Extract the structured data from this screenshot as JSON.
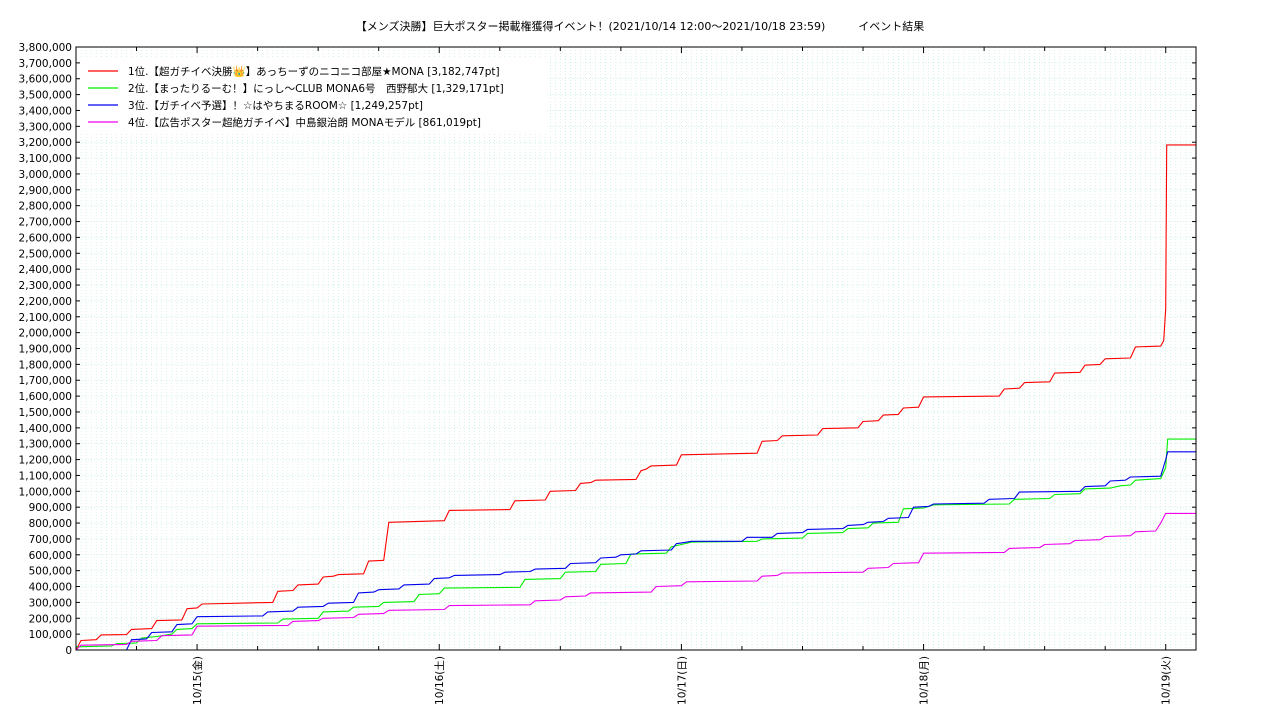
{
  "chart_data": {
    "type": "line",
    "title": "【メンズ決勝】巨大ポスター掲載権獲得イベント！(2021/10/14 12:00〜2021/10/18 23:59)　　　イベント結果",
    "xlabel": "",
    "ylabel": "",
    "ylim": [
      0,
      3800000
    ],
    "y_tick_step": 100000,
    "x_unit": "hours since 2021/10/14 12:00",
    "xlim": [
      0,
      111
    ],
    "x_ticks": [
      {
        "x": 12,
        "label": "10/15(金)"
      },
      {
        "x": 36,
        "label": "10/16(土)"
      },
      {
        "x": 60,
        "label": "10/17(日)"
      },
      {
        "x": 84,
        "label": "10/18(月)"
      },
      {
        "x": 108,
        "label": "10/19(火)"
      }
    ],
    "grid": true,
    "legend_position": "top-left",
    "series": [
      {
        "name": "1位.【超ガチイベ決勝👑】あっちーずのニコニコ部屋★MONA [3,182,747pt]",
        "color": "#ff0000",
        "points": [
          [
            0,
            0
          ],
          [
            0.5,
            60000
          ],
          [
            2,
            65000
          ],
          [
            2.5,
            95000
          ],
          [
            5,
            97000
          ],
          [
            5.5,
            130000
          ],
          [
            7.5,
            135000
          ],
          [
            8,
            185000
          ],
          [
            10.5,
            190000
          ],
          [
            11,
            260000
          ],
          [
            12,
            265000
          ],
          [
            12.5,
            290000
          ],
          [
            19.5,
            300000
          ],
          [
            20,
            370000
          ],
          [
            21.5,
            375000
          ],
          [
            22,
            410000
          ],
          [
            24,
            415000
          ],
          [
            24.5,
            460000
          ],
          [
            25.5,
            465000
          ],
          [
            26,
            475000
          ],
          [
            28.5,
            480000
          ],
          [
            29,
            560000
          ],
          [
            30.5,
            565000
          ],
          [
            31,
            805000
          ],
          [
            36.5,
            815000
          ],
          [
            37,
            880000
          ],
          [
            43,
            885000
          ],
          [
            43.5,
            940000
          ],
          [
            46.5,
            945000
          ],
          [
            47,
            1000000
          ],
          [
            49.5,
            1005000
          ],
          [
            50,
            1050000
          ],
          [
            51,
            1055000
          ],
          [
            51.5,
            1070000
          ],
          [
            55.5,
            1075000
          ],
          [
            56,
            1130000
          ],
          [
            56.5,
            1140000
          ],
          [
            57,
            1160000
          ],
          [
            59.5,
            1165000
          ],
          [
            60,
            1230000
          ],
          [
            67.5,
            1240000
          ],
          [
            68,
            1315000
          ],
          [
            69.5,
            1320000
          ],
          [
            70,
            1350000
          ],
          [
            73.5,
            1355000
          ],
          [
            74,
            1395000
          ],
          [
            77.5,
            1400000
          ],
          [
            78,
            1440000
          ],
          [
            79.5,
            1445000
          ],
          [
            80,
            1480000
          ],
          [
            81.5,
            1485000
          ],
          [
            82,
            1525000
          ],
          [
            83.5,
            1530000
          ],
          [
            84,
            1595000
          ],
          [
            91.5,
            1600000
          ],
          [
            92,
            1645000
          ],
          [
            93.5,
            1650000
          ],
          [
            94,
            1685000
          ],
          [
            96.5,
            1690000
          ],
          [
            97,
            1745000
          ],
          [
            99.5,
            1750000
          ],
          [
            100,
            1795000
          ],
          [
            101.5,
            1800000
          ],
          [
            102,
            1835000
          ],
          [
            104.5,
            1840000
          ],
          [
            105,
            1910000
          ],
          [
            107.5,
            1915000
          ],
          [
            107.8,
            1950000
          ],
          [
            108,
            2150000
          ],
          [
            108.1,
            3182747
          ],
          [
            111,
            3182747
          ]
        ]
      },
      {
        "name": "2位.【まったりるーむ！】にっし〜CLUB MONA6号　西野郁大 [1,329,171pt]",
        "color": "#00ee00",
        "points": [
          [
            0,
            20000
          ],
          [
            3.5,
            25000
          ],
          [
            4,
            40000
          ],
          [
            6,
            45000
          ],
          [
            6.5,
            75000
          ],
          [
            8,
            85000
          ],
          [
            9.5,
            100000
          ],
          [
            10,
            130000
          ],
          [
            11.5,
            135000
          ],
          [
            12,
            165000
          ],
          [
            20,
            170000
          ],
          [
            20.5,
            195000
          ],
          [
            24,
            200000
          ],
          [
            24.5,
            240000
          ],
          [
            27,
            245000
          ],
          [
            27.5,
            270000
          ],
          [
            30,
            275000
          ],
          [
            30.5,
            300000
          ],
          [
            33.5,
            305000
          ],
          [
            34,
            350000
          ],
          [
            36,
            355000
          ],
          [
            36.5,
            390000
          ],
          [
            44,
            395000
          ],
          [
            44.5,
            445000
          ],
          [
            48,
            450000
          ],
          [
            48.5,
            490000
          ],
          [
            51.5,
            495000
          ],
          [
            52,
            540000
          ],
          [
            54.5,
            545000
          ],
          [
            55,
            605000
          ],
          [
            58.5,
            610000
          ],
          [
            59,
            650000
          ],
          [
            61,
            680000
          ],
          [
            67.5,
            685000
          ],
          [
            68,
            700000
          ],
          [
            72,
            705000
          ],
          [
            72.5,
            735000
          ],
          [
            76,
            740000
          ],
          [
            76.5,
            765000
          ],
          [
            78.5,
            770000
          ],
          [
            79,
            800000
          ],
          [
            81.5,
            805000
          ],
          [
            82,
            890000
          ],
          [
            84,
            895000
          ],
          [
            85,
            915000
          ],
          [
            92.5,
            920000
          ],
          [
            93,
            950000
          ],
          [
            96.5,
            955000
          ],
          [
            97,
            980000
          ],
          [
            99.5,
            985000
          ],
          [
            100,
            1015000
          ],
          [
            102.5,
            1020000
          ],
          [
            103.5,
            1035000
          ],
          [
            104.5,
            1040000
          ],
          [
            105,
            1070000
          ],
          [
            107.5,
            1080000
          ],
          [
            108,
            1150000
          ],
          [
            108.2,
            1329171
          ],
          [
            111,
            1329171
          ]
        ]
      },
      {
        "name": "3位.【ガチイベ予選】！☆はやちまるROOM☆ [1,249,257pt]",
        "color": "#0000ee",
        "points": [
          [
            0,
            0
          ],
          [
            5,
            0
          ],
          [
            5.5,
            65000
          ],
          [
            7,
            70000
          ],
          [
            7.5,
            110000
          ],
          [
            9.5,
            115000
          ],
          [
            10,
            160000
          ],
          [
            11.5,
            165000
          ],
          [
            12,
            210000
          ],
          [
            18.5,
            215000
          ],
          [
            19,
            240000
          ],
          [
            21.5,
            245000
          ],
          [
            22,
            270000
          ],
          [
            24.5,
            275000
          ],
          [
            25,
            295000
          ],
          [
            27.5,
            300000
          ],
          [
            28,
            360000
          ],
          [
            29.5,
            365000
          ],
          [
            30,
            380000
          ],
          [
            32,
            385000
          ],
          [
            32.5,
            410000
          ],
          [
            35,
            415000
          ],
          [
            35.5,
            450000
          ],
          [
            37,
            455000
          ],
          [
            37.5,
            470000
          ],
          [
            42,
            475000
          ],
          [
            42.5,
            490000
          ],
          [
            45,
            495000
          ],
          [
            45.5,
            510000
          ],
          [
            48.5,
            515000
          ],
          [
            49,
            545000
          ],
          [
            51.5,
            550000
          ],
          [
            52,
            580000
          ],
          [
            53.5,
            585000
          ],
          [
            54,
            600000
          ],
          [
            55.5,
            605000
          ],
          [
            56,
            625000
          ],
          [
            59,
            630000
          ],
          [
            59.5,
            670000
          ],
          [
            60,
            675000
          ],
          [
            61,
            685000
          ],
          [
            66,
            685000
          ],
          [
            66.5,
            710000
          ],
          [
            69,
            710000
          ],
          [
            69.5,
            735000
          ],
          [
            72,
            740000
          ],
          [
            72.5,
            760000
          ],
          [
            76,
            765000
          ],
          [
            76.5,
            785000
          ],
          [
            78,
            790000
          ],
          [
            78.5,
            805000
          ],
          [
            80,
            810000
          ],
          [
            80.5,
            830000
          ],
          [
            82.5,
            835000
          ],
          [
            83,
            900000
          ],
          [
            84.5,
            905000
          ],
          [
            85,
            920000
          ],
          [
            90,
            925000
          ],
          [
            90.5,
            950000
          ],
          [
            93,
            955000
          ],
          [
            93.5,
            995000
          ],
          [
            99.5,
            1000000
          ],
          [
            100,
            1030000
          ],
          [
            102,
            1035000
          ],
          [
            102.5,
            1065000
          ],
          [
            104,
            1070000
          ],
          [
            104.5,
            1090000
          ],
          [
            107.5,
            1095000
          ],
          [
            108,
            1200000
          ],
          [
            108.2,
            1249257
          ],
          [
            111,
            1249257
          ]
        ]
      },
      {
        "name": "4位.【広告ポスター超絶ガチイベ】中島銀治朗 MONAモデル [861,019pt]",
        "color": "#ee00ee",
        "points": [
          [
            0,
            0
          ],
          [
            0.5,
            30000
          ],
          [
            5,
            35000
          ],
          [
            5.5,
            55000
          ],
          [
            8,
            60000
          ],
          [
            8.5,
            90000
          ],
          [
            11.5,
            95000
          ],
          [
            12,
            150000
          ],
          [
            21,
            155000
          ],
          [
            21.5,
            180000
          ],
          [
            24,
            185000
          ],
          [
            24.5,
            200000
          ],
          [
            27.5,
            205000
          ],
          [
            28,
            225000
          ],
          [
            30.5,
            230000
          ],
          [
            31,
            250000
          ],
          [
            36.5,
            255000
          ],
          [
            37,
            280000
          ],
          [
            45,
            285000
          ],
          [
            45.5,
            310000
          ],
          [
            48,
            315000
          ],
          [
            48.5,
            335000
          ],
          [
            50.5,
            340000
          ],
          [
            51,
            360000
          ],
          [
            57,
            365000
          ],
          [
            57.5,
            400000
          ],
          [
            60,
            405000
          ],
          [
            60.5,
            430000
          ],
          [
            67.5,
            435000
          ],
          [
            68,
            465000
          ],
          [
            69.5,
            470000
          ],
          [
            70,
            485000
          ],
          [
            78,
            490000
          ],
          [
            78.5,
            515000
          ],
          [
            80.5,
            520000
          ],
          [
            81,
            545000
          ],
          [
            83.5,
            550000
          ],
          [
            84,
            610000
          ],
          [
            92,
            615000
          ],
          [
            92.5,
            640000
          ],
          [
            95.5,
            645000
          ],
          [
            96,
            665000
          ],
          [
            98.5,
            670000
          ],
          [
            99,
            690000
          ],
          [
            101.5,
            695000
          ],
          [
            102,
            715000
          ],
          [
            104.5,
            720000
          ],
          [
            105,
            745000
          ],
          [
            107,
            750000
          ],
          [
            107.5,
            800000
          ],
          [
            108,
            861019
          ],
          [
            111,
            861019
          ]
        ]
      }
    ]
  }
}
